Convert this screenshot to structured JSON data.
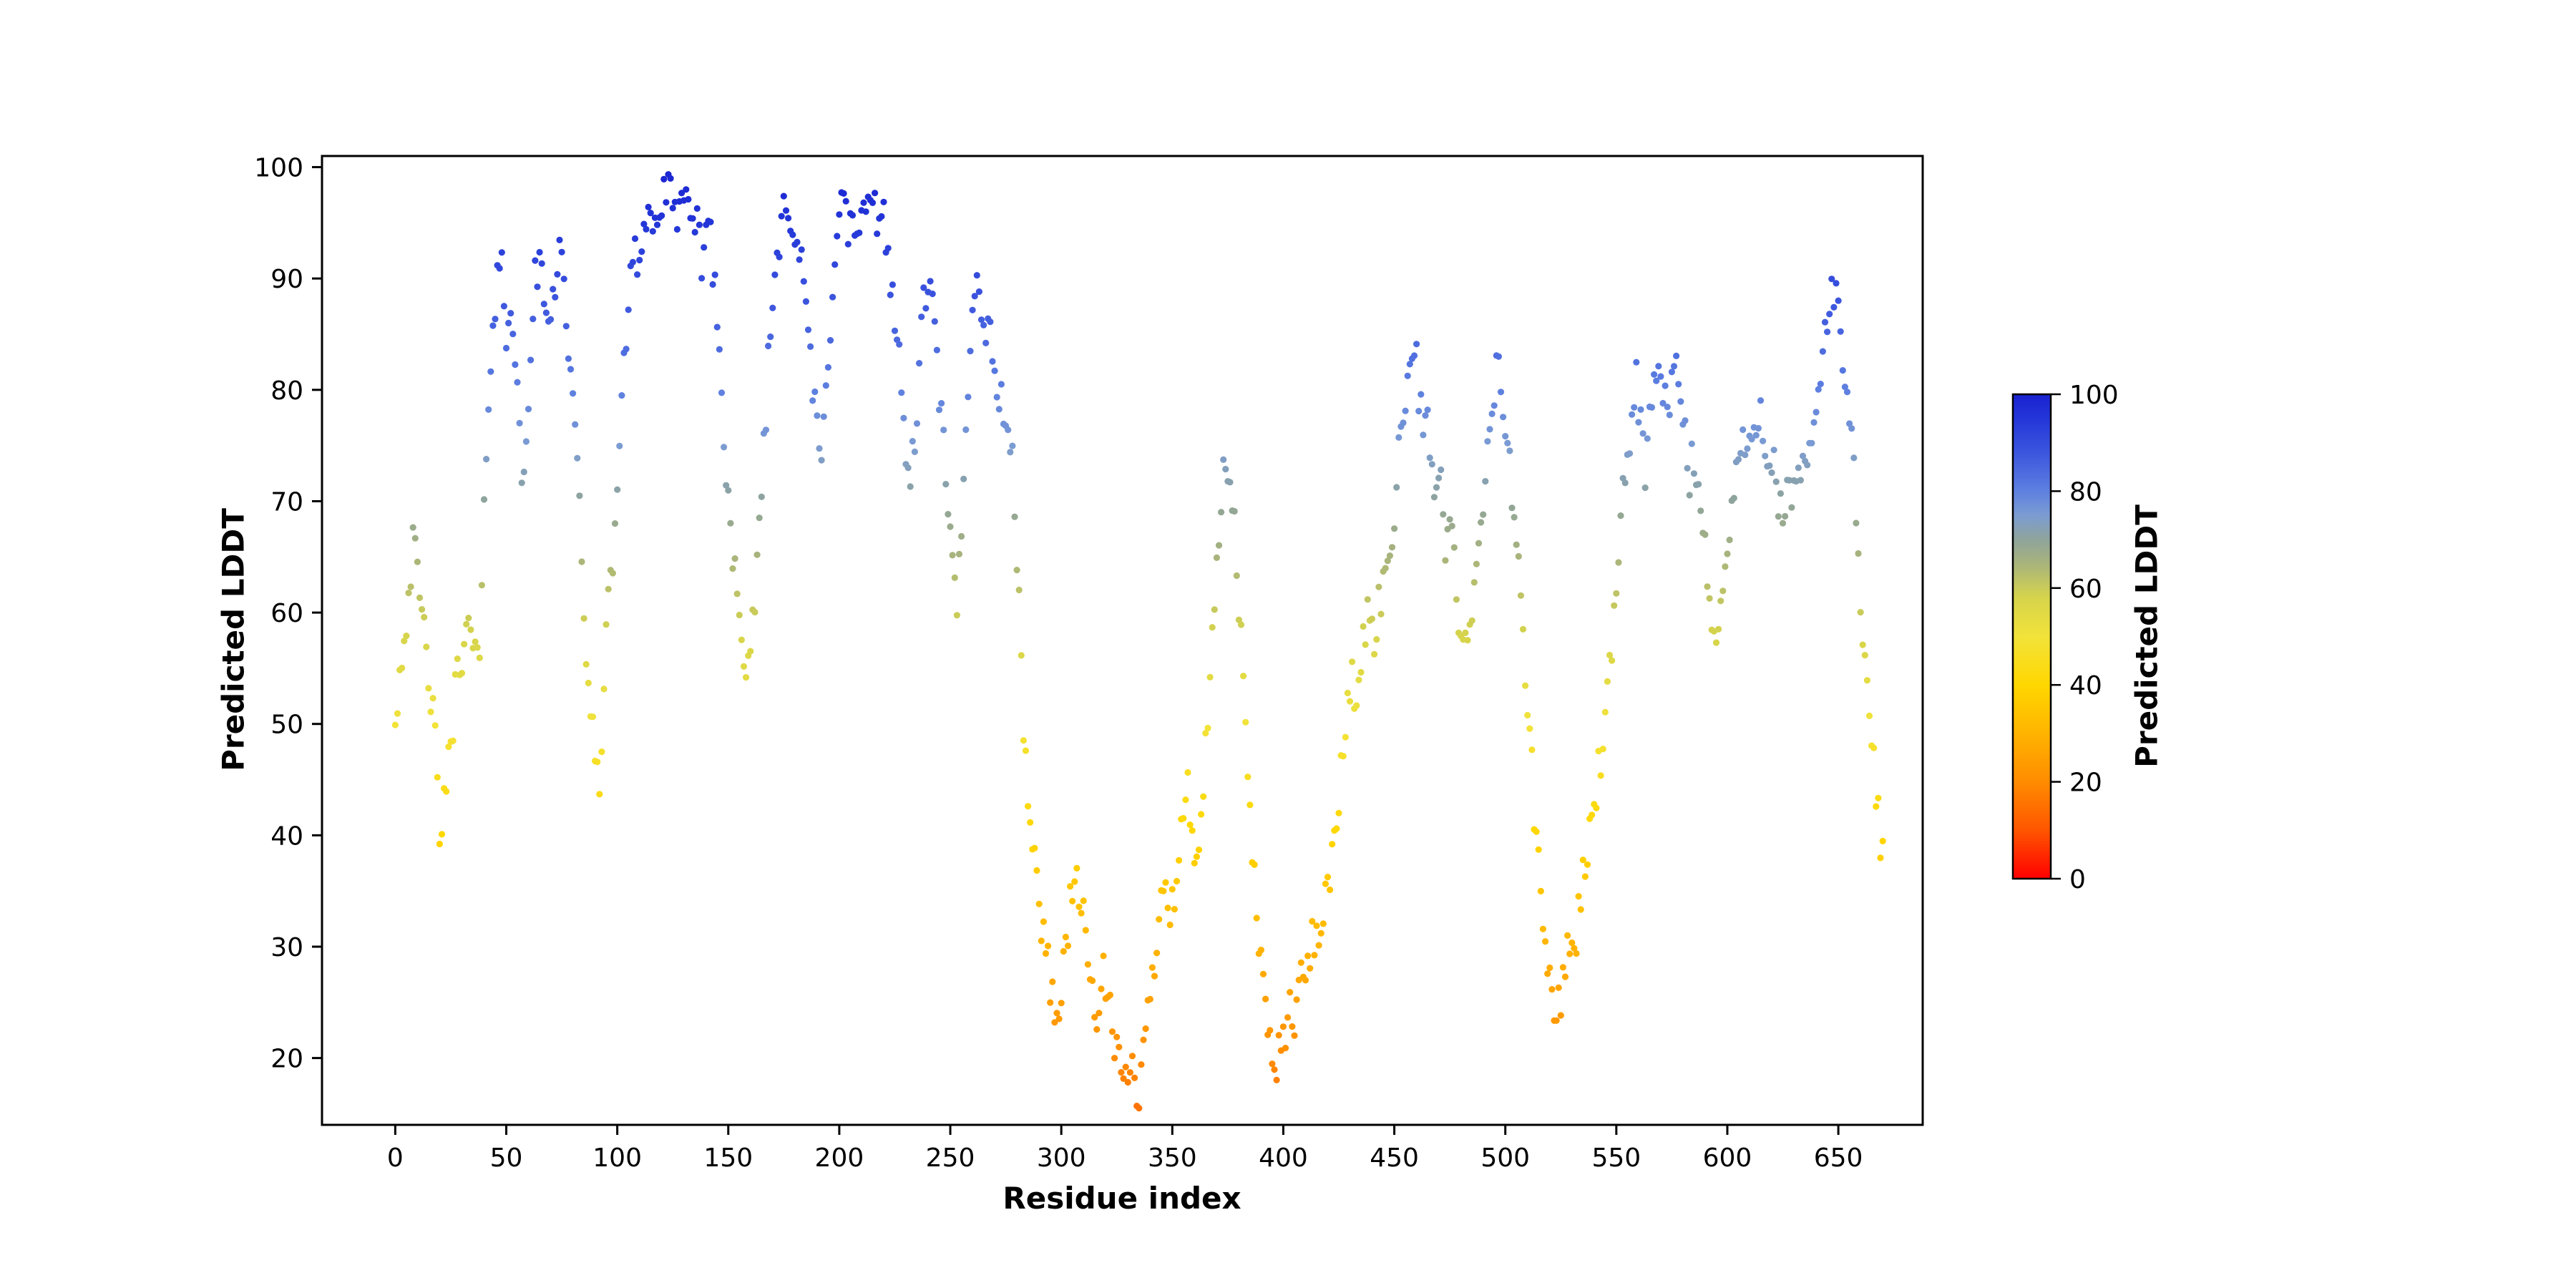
{
  "figure": {
    "background": "#ffffff",
    "text_color": "#000000"
  },
  "chart_data": {
    "type": "scatter",
    "title": "",
    "xlabel": "Residue index",
    "ylabel": "Predicted LDDT",
    "xlim": [
      -33,
      688
    ],
    "ylim": [
      14,
      101
    ],
    "xticks": [
      0,
      50,
      100,
      150,
      200,
      250,
      300,
      350,
      400,
      450,
      500,
      550,
      600,
      650
    ],
    "yticks": [
      20,
      30,
      40,
      50,
      60,
      70,
      80,
      90,
      100
    ],
    "grid": false,
    "legend": "none",
    "marker": {
      "shape": "circle",
      "radius_px": 4.6
    },
    "color_by": "y-value",
    "colormap": {
      "stops": [
        [
          0.0,
          "#ff0000"
        ],
        [
          0.1,
          "#ff5500"
        ],
        [
          0.2,
          "#ff8c00"
        ],
        [
          0.3,
          "#ffb400"
        ],
        [
          0.4,
          "#ffd700"
        ],
        [
          0.5,
          "#f2e33a"
        ],
        [
          0.58,
          "#d6d44c"
        ],
        [
          0.65,
          "#a8b47c"
        ],
        [
          0.7,
          "#8fa49b"
        ],
        [
          0.75,
          "#7b9cd2"
        ],
        [
          0.8,
          "#5e80e0"
        ],
        [
          0.88,
          "#3c55de"
        ],
        [
          0.95,
          "#2336d8"
        ],
        [
          1.0,
          "#1a22d0"
        ]
      ]
    },
    "colorbar": {
      "label": "Predicted LDDT",
      "ticks": [
        0,
        20,
        40,
        60,
        80,
        100
      ],
      "range": [
        0,
        100
      ]
    },
    "points_profile": {
      "comment": "mean pLDDT read from plot at anchor residues; points = anchors interpolated per residue with small jitter",
      "x_start": 0,
      "x_end": 670,
      "x_step": 1,
      "jitter": 2.2,
      "seed": 42,
      "anchors": [
        [
          0,
          51
        ],
        [
          4,
          58
        ],
        [
          6,
          62
        ],
        [
          8,
          66
        ],
        [
          10,
          63
        ],
        [
          13,
          58
        ],
        [
          15,
          55
        ],
        [
          18,
          48
        ],
        [
          20,
          39
        ],
        [
          22,
          44
        ],
        [
          25,
          47
        ],
        [
          28,
          56
        ],
        [
          31,
          57
        ],
        [
          33,
          58
        ],
        [
          36,
          57
        ],
        [
          38,
          55
        ],
        [
          40,
          68
        ],
        [
          42,
          80
        ],
        [
          44,
          86
        ],
        [
          46,
          90
        ],
        [
          48,
          91
        ],
        [
          50,
          85
        ],
        [
          52,
          89
        ],
        [
          54,
          83
        ],
        [
          56,
          75
        ],
        [
          58,
          71
        ],
        [
          60,
          79
        ],
        [
          62,
          88
        ],
        [
          64,
          91
        ],
        [
          66,
          90
        ],
        [
          68,
          86
        ],
        [
          70,
          88
        ],
        [
          72,
          90
        ],
        [
          74,
          93
        ],
        [
          76,
          90
        ],
        [
          78,
          84
        ],
        [
          80,
          78
        ],
        [
          82,
          73
        ],
        [
          84,
          65
        ],
        [
          86,
          57
        ],
        [
          88,
          50
        ],
        [
          90,
          47
        ],
        [
          92,
          44
        ],
        [
          94,
          55
        ],
        [
          96,
          60
        ],
        [
          98,
          65
        ],
        [
          100,
          72
        ],
        [
          102,
          78
        ],
        [
          104,
          85
        ],
        [
          106,
          91
        ],
        [
          108,
          94
        ],
        [
          110,
          91
        ],
        [
          112,
          95
        ],
        [
          114,
          96
        ],
        [
          116,
          94
        ],
        [
          118,
          96
        ],
        [
          120,
          96
        ],
        [
          122,
          98
        ],
        [
          124,
          97
        ],
        [
          126,
          95
        ],
        [
          128,
          98
        ],
        [
          130,
          97
        ],
        [
          132,
          95
        ],
        [
          134,
          94
        ],
        [
          136,
          96
        ],
        [
          138,
          92
        ],
        [
          140,
          95
        ],
        [
          142,
          93
        ],
        [
          144,
          90
        ],
        [
          146,
          83
        ],
        [
          148,
          75
        ],
        [
          150,
          70
        ],
        [
          152,
          66
        ],
        [
          155,
          58
        ],
        [
          157,
          55
        ],
        [
          158,
          52
        ],
        [
          160,
          56
        ],
        [
          162,
          62
        ],
        [
          164,
          68
        ],
        [
          166,
          75
        ],
        [
          168,
          82
        ],
        [
          170,
          88
        ],
        [
          172,
          92
        ],
        [
          174,
          96
        ],
        [
          176,
          98
        ],
        [
          178,
          96
        ],
        [
          180,
          94
        ],
        [
          182,
          92
        ],
        [
          184,
          89
        ],
        [
          186,
          86
        ],
        [
          188,
          80
        ],
        [
          190,
          76
        ],
        [
          192,
          73
        ],
        [
          194,
          80
        ],
        [
          196,
          86
        ],
        [
          198,
          93
        ],
        [
          200,
          96
        ],
        [
          202,
          97
        ],
        [
          204,
          94
        ],
        [
          206,
          96
        ],
        [
          208,
          93
        ],
        [
          210,
          95
        ],
        [
          212,
          97
        ],
        [
          214,
          95
        ],
        [
          216,
          96
        ],
        [
          218,
          95
        ],
        [
          220,
          96
        ],
        [
          222,
          93
        ],
        [
          224,
          88
        ],
        [
          226,
          85
        ],
        [
          228,
          79
        ],
        [
          230,
          75
        ],
        [
          232,
          71
        ],
        [
          234,
          76
        ],
        [
          236,
          81
        ],
        [
          238,
          88
        ],
        [
          240,
          90
        ],
        [
          242,
          87
        ],
        [
          244,
          82
        ],
        [
          246,
          78
        ],
        [
          248,
          71
        ],
        [
          250,
          66
        ],
        [
          252,
          62
        ],
        [
          253,
          60
        ],
        [
          255,
          68
        ],
        [
          257,
          76
        ],
        [
          259,
          85
        ],
        [
          261,
          90
        ],
        [
          263,
          88
        ],
        [
          265,
          87
        ],
        [
          267,
          85
        ],
        [
          270,
          82
        ],
        [
          273,
          79
        ],
        [
          276,
          76
        ],
        [
          278,
          74
        ],
        [
          280,
          65
        ],
        [
          282,
          55
        ],
        [
          284,
          46
        ],
        [
          286,
          42
        ],
        [
          288,
          37
        ],
        [
          290,
          34
        ],
        [
          292,
          31
        ],
        [
          295,
          27
        ],
        [
          297,
          25
        ],
        [
          298,
          23
        ],
        [
          300,
          26
        ],
        [
          302,
          30
        ],
        [
          304,
          34
        ],
        [
          306,
          37
        ],
        [
          308,
          35
        ],
        [
          310,
          32
        ],
        [
          313,
          27
        ],
        [
          315,
          25
        ],
        [
          317,
          24
        ],
        [
          319,
          27
        ],
        [
          321,
          26
        ],
        [
          323,
          22
        ],
        [
          325,
          20
        ],
        [
          327,
          18
        ],
        [
          329,
          17
        ],
        [
          331,
          20
        ],
        [
          333,
          18
        ],
        [
          335,
          17
        ],
        [
          337,
          20
        ],
        [
          339,
          24
        ],
        [
          341,
          27
        ],
        [
          343,
          31
        ],
        [
          345,
          35
        ],
        [
          347,
          37
        ],
        [
          349,
          34
        ],
        [
          351,
          34
        ],
        [
          353,
          38
        ],
        [
          355,
          42
        ],
        [
          357,
          44
        ],
        [
          359,
          40
        ],
        [
          361,
          38
        ],
        [
          363,
          42
        ],
        [
          365,
          47
        ],
        [
          367,
          53
        ],
        [
          369,
          60
        ],
        [
          371,
          67
        ],
        [
          373,
          72
        ],
        [
          375,
          73
        ],
        [
          377,
          70
        ],
        [
          379,
          64
        ],
        [
          381,
          58
        ],
        [
          383,
          48
        ],
        [
          385,
          42
        ],
        [
          387,
          36
        ],
        [
          389,
          30
        ],
        [
          391,
          26
        ],
        [
          393,
          23
        ],
        [
          395,
          21
        ],
        [
          397,
          20
        ],
        [
          399,
          22
        ],
        [
          401,
          21
        ],
        [
          403,
          25
        ],
        [
          405,
          24
        ],
        [
          407,
          26
        ],
        [
          409,
          28
        ],
        [
          411,
          27
        ],
        [
          413,
          31
        ],
        [
          415,
          30
        ],
        [
          417,
          32
        ],
        [
          419,
          34
        ],
        [
          421,
          36
        ],
        [
          423,
          41
        ],
        [
          425,
          44
        ],
        [
          427,
          47
        ],
        [
          429,
          51
        ],
        [
          431,
          54
        ],
        [
          433,
          52
        ],
        [
          435,
          56
        ],
        [
          437,
          58
        ],
        [
          439,
          60
        ],
        [
          441,
          58
        ],
        [
          443,
          61
        ],
        [
          445,
          62
        ],
        [
          447,
          64
        ],
        [
          449,
          67
        ],
        [
          451,
          72
        ],
        [
          453,
          77
        ],
        [
          455,
          80
        ],
        [
          457,
          82
        ],
        [
          459,
          85
        ],
        [
          461,
          80
        ],
        [
          463,
          75
        ],
        [
          465,
          77
        ],
        [
          467,
          73
        ],
        [
          469,
          71
        ],
        [
          471,
          72
        ],
        [
          473,
          66
        ],
        [
          475,
          68
        ],
        [
          477,
          64
        ],
        [
          479,
          60
        ],
        [
          481,
          56
        ],
        [
          483,
          57
        ],
        [
          485,
          60
        ],
        [
          487,
          63
        ],
        [
          489,
          67
        ],
        [
          491,
          72
        ],
        [
          493,
          77
        ],
        [
          495,
          80
        ],
        [
          497,
          83
        ],
        [
          499,
          78
        ],
        [
          501,
          75
        ],
        [
          503,
          70
        ],
        [
          505,
          67
        ],
        [
          507,
          62
        ],
        [
          509,
          55
        ],
        [
          511,
          49
        ],
        [
          513,
          42
        ],
        [
          515,
          37
        ],
        [
          517,
          32
        ],
        [
          519,
          28
        ],
        [
          521,
          26
        ],
        [
          523,
          23
        ],
        [
          525,
          26
        ],
        [
          527,
          29
        ],
        [
          529,
          31
        ],
        [
          531,
          28
        ],
        [
          533,
          33
        ],
        [
          535,
          36
        ],
        [
          537,
          39
        ],
        [
          539,
          42
        ],
        [
          541,
          44
        ],
        [
          543,
          47
        ],
        [
          545,
          50
        ],
        [
          547,
          54
        ],
        [
          549,
          59
        ],
        [
          551,
          64
        ],
        [
          553,
          70
        ],
        [
          555,
          74
        ],
        [
          557,
          78
        ],
        [
          559,
          81
        ],
        [
          561,
          77
        ],
        [
          563,
          73
        ],
        [
          565,
          77
        ],
        [
          567,
          80
        ],
        [
          569,
          82
        ],
        [
          571,
          80
        ],
        [
          573,
          77
        ],
        [
          575,
          80
        ],
        [
          577,
          82
        ],
        [
          579,
          79
        ],
        [
          581,
          76
        ],
        [
          583,
          72
        ],
        [
          585,
          74
        ],
        [
          587,
          71
        ],
        [
          589,
          67
        ],
        [
          591,
          64
        ],
        [
          593,
          60
        ],
        [
          595,
          57
        ],
        [
          597,
          60
        ],
        [
          599,
          64
        ],
        [
          601,
          67
        ],
        [
          603,
          71
        ],
        [
          605,
          74
        ],
        [
          607,
          76
        ],
        [
          609,
          73
        ],
        [
          611,
          75
        ],
        [
          613,
          78
        ],
        [
          615,
          78
        ],
        [
          617,
          75
        ],
        [
          619,
          74
        ],
        [
          621,
          75
        ],
        [
          623,
          70
        ],
        [
          625,
          68
        ],
        [
          627,
          71
        ],
        [
          629,
          69
        ],
        [
          631,
          72
        ],
        [
          633,
          71
        ],
        [
          635,
          73
        ],
        [
          637,
          75
        ],
        [
          639,
          77
        ],
        [
          641,
          80
        ],
        [
          643,
          84
        ],
        [
          645,
          86
        ],
        [
          647,
          88
        ],
        [
          649,
          89
        ],
        [
          651,
          86
        ],
        [
          653,
          80
        ],
        [
          655,
          76
        ],
        [
          657,
          73
        ],
        [
          659,
          65
        ],
        [
          661,
          58
        ],
        [
          663,
          52
        ],
        [
          665,
          48
        ],
        [
          667,
          44
        ],
        [
          669,
          40
        ],
        [
          670,
          38
        ]
      ]
    }
  }
}
